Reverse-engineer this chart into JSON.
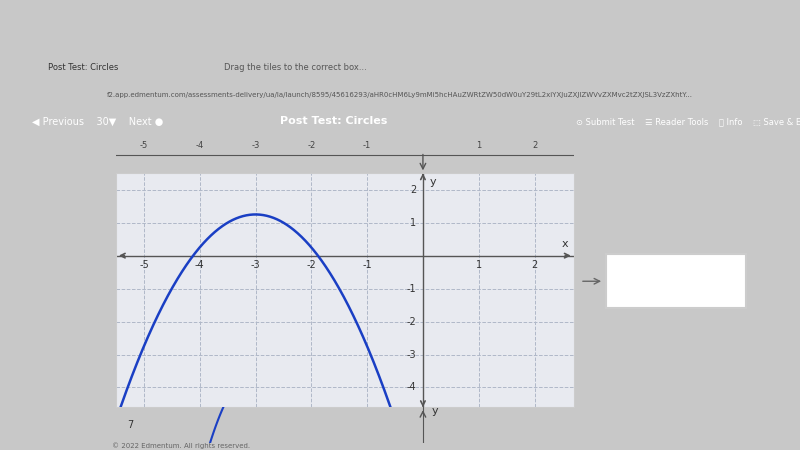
{
  "browser_bg": "#f0f0f0",
  "page_bg": "#ffffff",
  "browser_bar_color": "#dee1e6",
  "browser_top_color": "#3c3c3c",
  "tab_color": "#ffffff",
  "plot_bg_color": "#e8eaf0",
  "grid_color": "#b0b8c8",
  "axis_color": "#555555",
  "curve_color": "#1a3fc4",
  "curve_lw": 1.8,
  "xlim": [
    -5.5,
    2.7
  ],
  "ylim": [
    -4.6,
    2.5
  ],
  "xticks": [
    -5,
    -4,
    -3,
    -2,
    -1,
    1,
    2
  ],
  "yticks": [
    -4,
    -3,
    -2,
    -1,
    1,
    2
  ],
  "xlabel": "x",
  "ylabel": "y",
  "vertex_x": -3.0,
  "vertex_y": 1.25,
  "a": -1.0,
  "outer_bg": "#c8c8c8",
  "panel_bg": "#f5f5f5",
  "box_color": "#ffffff",
  "box_border": "#cccccc",
  "arrow_color": "#666666",
  "bottom_panel_bg": "#f5f5f5",
  "top_strip_bg": "#f0f0f0"
}
